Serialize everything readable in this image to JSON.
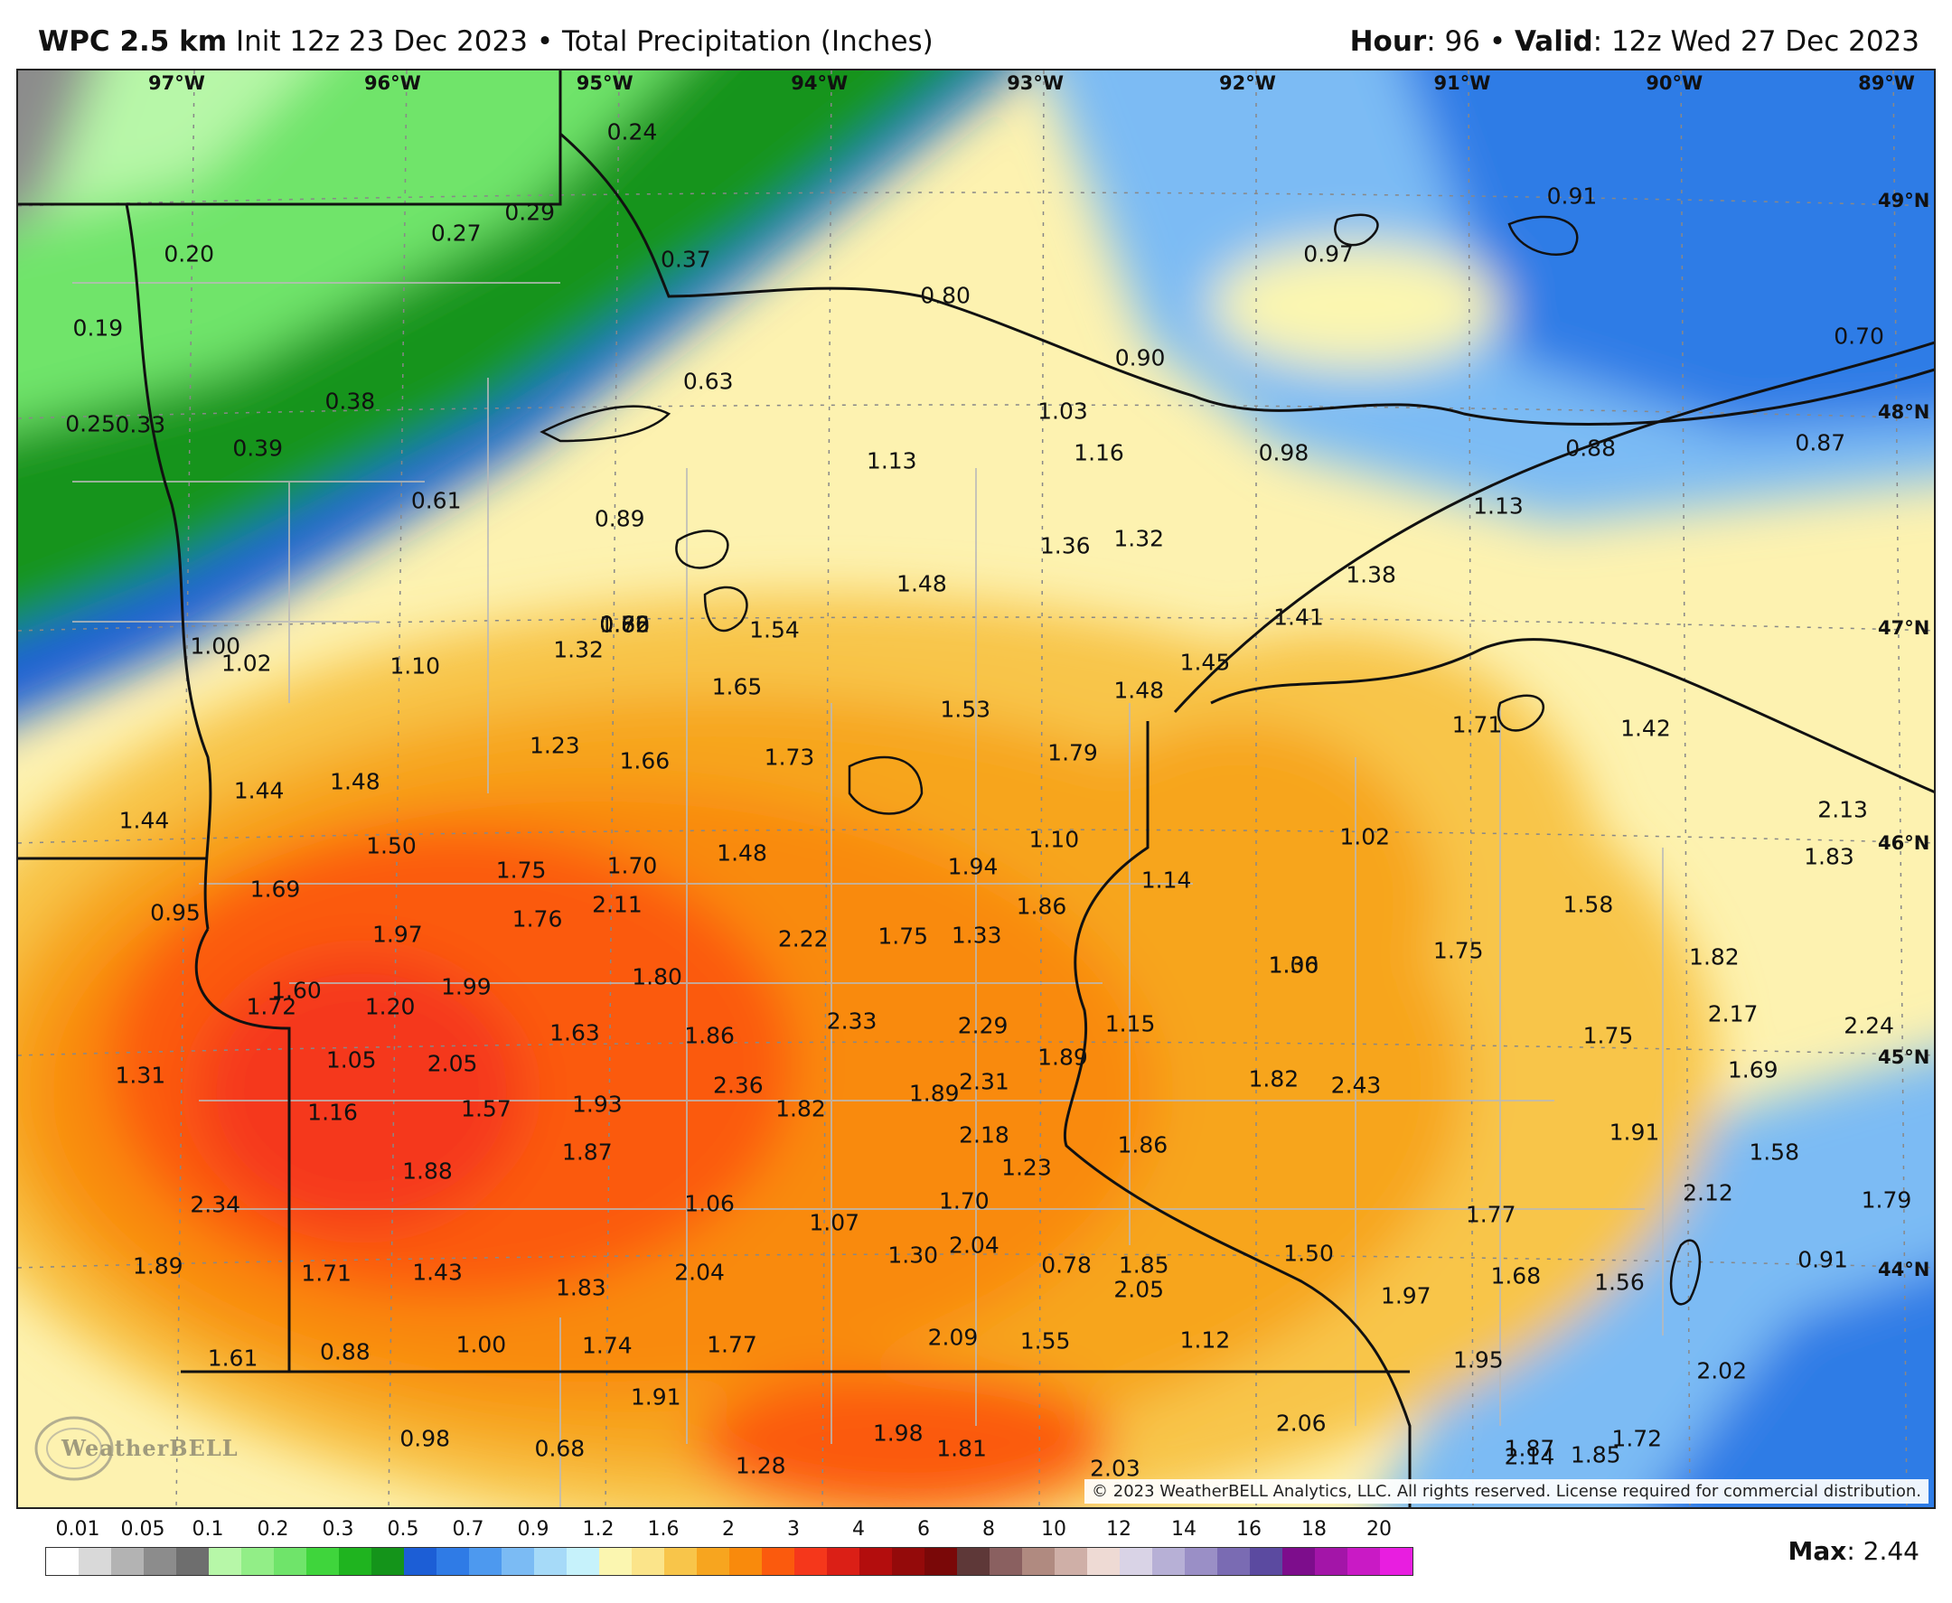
{
  "header": {
    "model": "WPC 2.5 km",
    "init": "Init 12z 23 Dec 2023",
    "sep": "•",
    "product": "Total Precipitation (Inches)",
    "hour_label": "Hour",
    "hour_value": ": 96",
    "valid_label": "Valid",
    "valid_value": ": 12z Wed 27 Dec 2023"
  },
  "longitude_labels": [
    "97°W",
    "96°W",
    "95°W",
    "94°W",
    "93°W",
    "92°W",
    "91°W",
    "90°W",
    "89°W"
  ],
  "latitude_labels": [
    "49°N",
    "48°N",
    "47°N",
    "46°N",
    "45°N",
    "44°N"
  ],
  "values": [
    "0.24",
    "0.29",
    "0.20",
    "0.27",
    "0.37",
    "0.19",
    "0.80",
    "0.91",
    "0.97",
    "0.63",
    "0.90",
    "0.70",
    "0.38",
    "0.25",
    "0.33",
    "0.39",
    "1.03",
    "0.98",
    "0.88",
    "0.87",
    "1.13",
    "1.16",
    "0.61",
    "0.89",
    "1.13",
    "1.36",
    "1.32",
    "1.48",
    "1.38",
    "1.54",
    "1.41",
    "1.00",
    "1.02",
    "1.10",
    "1.32",
    "1.45",
    "1.65",
    "1.48",
    "1.53",
    "1.71",
    "1.42",
    "1.23",
    "1.66",
    "1.73",
    "1.79",
    "1.44",
    "1.48",
    "1.44",
    "1.50",
    "1.10",
    "1.02",
    "1.75",
    "1.70",
    "1.48",
    "1.94",
    "2.13",
    "1.83",
    "1.69",
    "1.14",
    "0.95",
    "2.11",
    "1.58",
    "1.76",
    "1.97",
    "1.33",
    "1.86",
    "2.22",
    "1.75",
    "1.75",
    "1.06",
    "1.82",
    "1.80",
    "1.60",
    "1.72",
    "1.20",
    "1.99",
    "1.30",
    "2.29",
    "2.17",
    "2.33",
    "2.24",
    "1.63",
    "1.86",
    "1.15",
    "1.75",
    "1.05",
    "2.05",
    "1.89",
    "1.69",
    "1.31",
    "2.31",
    "2.36",
    "1.82",
    "1.16",
    "1.57",
    "1.93",
    "1.89",
    "1.82",
    "2.43",
    "2.18",
    "1.91",
    "1.86",
    "1.87",
    "1.58",
    "1.88",
    "1.23",
    "1.70",
    "2.12",
    "1.06",
    "2.34",
    "1.77",
    "1.79",
    "1.07",
    "2.04",
    "1.50",
    "1.30",
    "0.91",
    "1.89",
    "1.71",
    "1.43",
    "2.04",
    "0.78",
    "1.85",
    "1.83",
    "2.05",
    "1.97",
    "1.68",
    "1.56",
    "2.09",
    "1.55",
    "1.12",
    "1.00",
    "0.88",
    "1.74",
    "1.77",
    "1.61",
    "1.95",
    "2.02",
    "1.91",
    "2.06",
    "1.98",
    "0.98",
    "0.68",
    "1.81",
    "1.28",
    "2.03",
    "1.87",
    "1.72",
    "2.14",
    "1.85",
    "1.80",
    "0.86",
    "0.72",
    "0.65",
    "0.62"
  ],
  "copyright": "© 2023 WeatherBELL Analytics, LLC. All rights reserved. License required for commercial distribution.",
  "logo": "WeatherBELL",
  "legend": {
    "ticks": [
      "0.01",
      "0.05",
      "0.1",
      "0.2",
      "0.3",
      "0.5",
      "0.7",
      "0.9",
      "1.2",
      "1.6",
      "2",
      "3",
      "4",
      "6",
      "8",
      "10",
      "12",
      "14",
      "16",
      "18",
      "20"
    ],
    "colors": [
      "#ffffff",
      "#d9d9d9",
      "#b3b3b3",
      "#8c8c8c",
      "#6e6e6e",
      "#b7f7a8",
      "#92ee87",
      "#6fe46a",
      "#3fd53c",
      "#1fb41f",
      "#14941a",
      "#1c5ed6",
      "#2f7be6",
      "#4d99ef",
      "#7bbbf4",
      "#a6daf8",
      "#c6f2fb",
      "#fbf6b0",
      "#fbe48a",
      "#f8c54a",
      "#f7a51f",
      "#f98a0c",
      "#fb5a0d",
      "#f5371b",
      "#db1f16",
      "#b30d0d",
      "#940a0a",
      "#7a0808",
      "#5e3838",
      "#8a6060",
      "#b08a80",
      "#cfafa7",
      "#eedad4",
      "#d9d3e6",
      "#b7b0d6",
      "#9a8fc6",
      "#7a6bb3",
      "#5b4aa0",
      "#7d0d8c",
      "#a315a8",
      "#c91ac5",
      "#e81ee0"
    ],
    "max_label": "Max",
    "max_value": ": 2.44"
  }
}
